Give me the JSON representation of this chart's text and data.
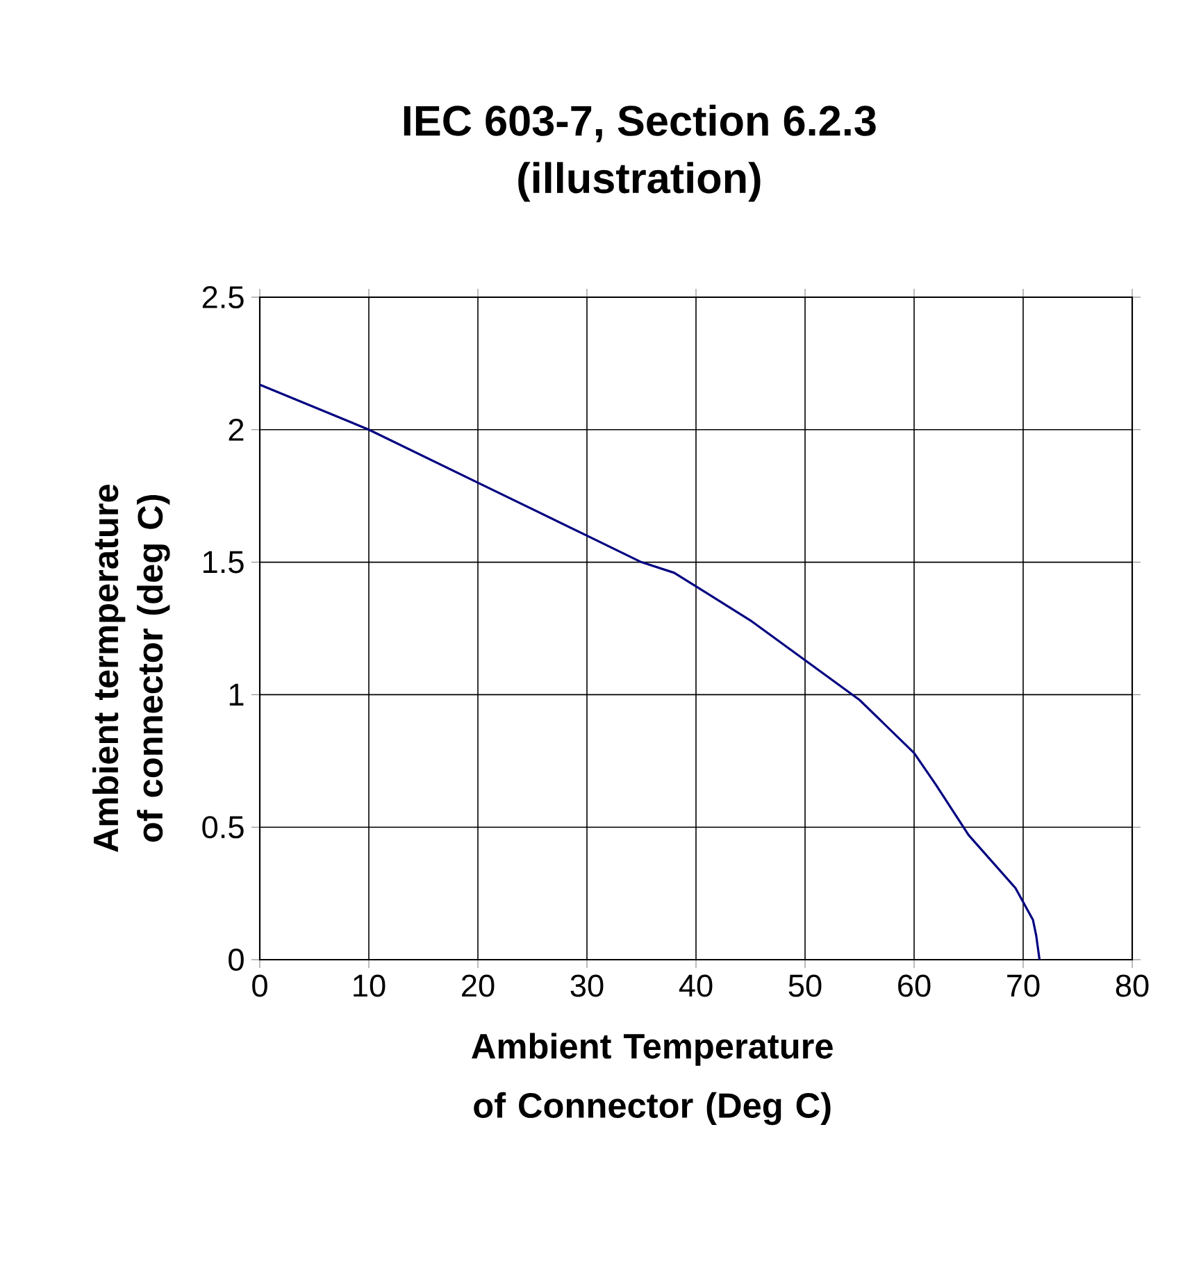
{
  "chart_data": {
    "type": "line",
    "title": "IEC 603-7, Section 6.2.3",
    "subtitle": "(illustration)",
    "xlabel": "Ambient Temperature of Connector (Deg C)",
    "ylabel": "Ambient termperature of connector (deg C)",
    "x": [
      0,
      10,
      20,
      30,
      35,
      38,
      45,
      50,
      55,
      60,
      62,
      65,
      69.3,
      70.9,
      71.2,
      71.5
    ],
    "values": [
      2.17,
      2.0,
      1.8,
      1.6,
      1.5,
      1.46,
      1.28,
      1.13,
      0.98,
      0.78,
      0.66,
      0.47,
      0.27,
      0.15,
      0.09,
      0
    ],
    "color": "#000080",
    "xlim": [
      0,
      80
    ],
    "ylim": [
      0,
      2.5
    ],
    "xticks": [
      0,
      10,
      20,
      30,
      40,
      50,
      60,
      70,
      80
    ],
    "yticks": [
      0,
      0.5,
      1,
      1.5,
      2,
      2.5
    ],
    "grid": true
  }
}
